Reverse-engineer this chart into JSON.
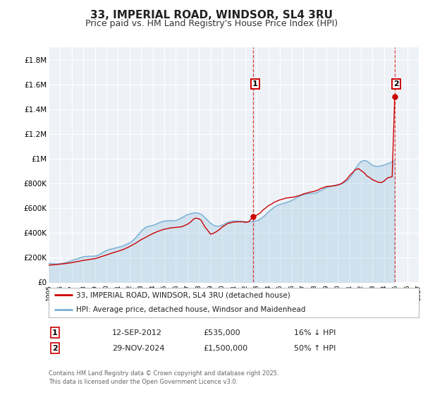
{
  "title": "33, IMPERIAL ROAD, WINDSOR, SL4 3RU",
  "subtitle": "Price paid vs. HM Land Registry's House Price Index (HPI)",
  "title_fontsize": 11,
  "subtitle_fontsize": 9,
  "background_color": "#ffffff",
  "plot_bg_color": "#eef2f7",
  "grid_color": "#ffffff",
  "ylim": [
    0,
    1900000
  ],
  "yticks": [
    0,
    200000,
    400000,
    600000,
    800000,
    1000000,
    1200000,
    1400000,
    1600000,
    1800000
  ],
  "ytick_labels": [
    "£0",
    "£200K",
    "£400K",
    "£600K",
    "£800K",
    "£1M",
    "£1.2M",
    "£1.4M",
    "£1.6M",
    "£1.8M"
  ],
  "xlim_start": 1995.0,
  "xlim_end": 2027.0,
  "xtick_years": [
    1995,
    1996,
    1997,
    1998,
    1999,
    2000,
    2001,
    2002,
    2003,
    2004,
    2005,
    2006,
    2007,
    2008,
    2009,
    2010,
    2011,
    2012,
    2013,
    2014,
    2015,
    2016,
    2017,
    2018,
    2019,
    2020,
    2021,
    2022,
    2023,
    2024,
    2025,
    2026,
    2027
  ],
  "red_line_color": "#cc0000",
  "blue_line_color": "#7ab0d4",
  "dashed_vline_color": "#cc0000",
  "sale1_x": 2012.7,
  "sale1_y": 535000,
  "sale2_x": 2024.92,
  "sale2_y": 1500000,
  "legend_label_red": "33, IMPERIAL ROAD, WINDSOR, SL4 3RU (detached house)",
  "legend_label_blue": "HPI: Average price, detached house, Windsor and Maidenhead",
  "annotation1_label": "1",
  "annotation2_label": "2",
  "table_row1": [
    "1",
    "12-SEP-2012",
    "£535,000",
    "16% ↓ HPI"
  ],
  "table_row2": [
    "2",
    "29-NOV-2024",
    "£1,500,000",
    "50% ↑ HPI"
  ],
  "footer_text": "Contains HM Land Registry data © Crown copyright and database right 2025.\nThis data is licensed under the Open Government Licence v3.0.",
  "hpi_data": {
    "years": [
      1995.04,
      1995.21,
      1995.37,
      1995.54,
      1995.71,
      1995.87,
      1996.04,
      1996.21,
      1996.37,
      1996.54,
      1996.71,
      1996.87,
      1997.04,
      1997.21,
      1997.37,
      1997.54,
      1997.71,
      1997.87,
      1998.04,
      1998.21,
      1998.37,
      1998.54,
      1998.71,
      1998.87,
      1999.04,
      1999.21,
      1999.37,
      1999.54,
      1999.71,
      1999.87,
      2000.04,
      2000.21,
      2000.37,
      2000.54,
      2000.71,
      2000.87,
      2001.04,
      2001.21,
      2001.37,
      2001.54,
      2001.71,
      2001.87,
      2002.04,
      2002.21,
      2002.37,
      2002.54,
      2002.71,
      2002.87,
      2003.04,
      2003.21,
      2003.37,
      2003.54,
      2003.71,
      2003.87,
      2004.04,
      2004.21,
      2004.37,
      2004.54,
      2004.71,
      2004.87,
      2005.04,
      2005.21,
      2005.37,
      2005.54,
      2005.71,
      2005.87,
      2006.04,
      2006.21,
      2006.37,
      2006.54,
      2006.71,
      2006.87,
      2007.04,
      2007.21,
      2007.37,
      2007.54,
      2007.71,
      2007.87,
      2008.04,
      2008.21,
      2008.37,
      2008.54,
      2008.71,
      2008.87,
      2009.04,
      2009.21,
      2009.37,
      2009.54,
      2009.71,
      2009.87,
      2010.04,
      2010.21,
      2010.37,
      2010.54,
      2010.71,
      2010.87,
      2011.04,
      2011.21,
      2011.37,
      2011.54,
      2011.71,
      2011.87,
      2012.04,
      2012.21,
      2012.37,
      2012.54,
      2012.71,
      2012.87,
      2013.04,
      2013.21,
      2013.37,
      2013.54,
      2013.71,
      2013.87,
      2014.04,
      2014.21,
      2014.37,
      2014.54,
      2014.71,
      2014.87,
      2015.04,
      2015.21,
      2015.37,
      2015.54,
      2015.71,
      2015.87,
      2016.04,
      2016.21,
      2016.37,
      2016.54,
      2016.71,
      2016.87,
      2017.04,
      2017.21,
      2017.37,
      2017.54,
      2017.71,
      2017.87,
      2018.04,
      2018.21,
      2018.37,
      2018.54,
      2018.71,
      2018.87,
      2019.04,
      2019.21,
      2019.37,
      2019.54,
      2019.71,
      2019.87,
      2020.04,
      2020.21,
      2020.37,
      2020.54,
      2020.71,
      2020.87,
      2021.04,
      2021.21,
      2021.37,
      2021.54,
      2021.71,
      2021.87,
      2022.04,
      2022.21,
      2022.37,
      2022.54,
      2022.71,
      2022.87,
      2023.04,
      2023.21,
      2023.37,
      2023.54,
      2023.71,
      2023.87,
      2024.04,
      2024.21,
      2024.37,
      2024.54,
      2024.71,
      2024.87
    ],
    "values": [
      155000,
      153000,
      151000,
      150000,
      150000,
      151000,
      152000,
      155000,
      158000,
      162000,
      167000,
      172000,
      178000,
      183000,
      188000,
      194000,
      199000,
      204000,
      208000,
      210000,
      211000,
      212000,
      212000,
      212000,
      214000,
      218000,
      225000,
      234000,
      244000,
      253000,
      260000,
      265000,
      269000,
      273000,
      277000,
      281000,
      285000,
      289000,
      294000,
      300000,
      307000,
      314000,
      322000,
      333000,
      347000,
      363000,
      381000,
      400000,
      418000,
      433000,
      444000,
      452000,
      456000,
      458000,
      462000,
      468000,
      475000,
      482000,
      488000,
      493000,
      496000,
      498000,
      499000,
      499000,
      499000,
      499000,
      502000,
      508000,
      516000,
      525000,
      534000,
      542000,
      549000,
      554000,
      558000,
      561000,
      563000,
      562000,
      557000,
      549000,
      537000,
      522000,
      506000,
      490000,
      476000,
      465000,
      458000,
      455000,
      455000,
      459000,
      465000,
      473000,
      481000,
      488000,
      493000,
      496000,
      497000,
      497000,
      496000,
      495000,
      494000,
      493000,
      491000,
      491000,
      491000,
      492000,
      494000,
      497000,
      502000,
      508000,
      517000,
      529000,
      543000,
      558000,
      573000,
      587000,
      600000,
      611000,
      620000,
      627000,
      632000,
      637000,
      641000,
      646000,
      651000,
      657000,
      664000,
      672000,
      681000,
      690000,
      698000,
      705000,
      710000,
      714000,
      717000,
      718000,
      719000,
      720000,
      723000,
      728000,
      735000,
      743000,
      752000,
      760000,
      767000,
      772000,
      776000,
      780000,
      784000,
      788000,
      791000,
      795000,
      800000,
      807000,
      816000,
      829000,
      846000,
      868000,
      895000,
      922000,
      946000,
      965000,
      978000,
      985000,
      985000,
      979000,
      968000,
      956000,
      946000,
      940000,
      938000,
      939000,
      942000,
      946000,
      951000,
      956000,
      962000,
      968000,
      975000,
      982000
    ]
  },
  "red_data": {
    "years": [
      1995.04,
      1995.5,
      1996.0,
      1996.5,
      1997.0,
      1997.5,
      1998.0,
      1998.5,
      1999.0,
      1999.5,
      2000.0,
      2000.5,
      2001.0,
      2001.5,
      2002.0,
      2002.5,
      2003.0,
      2003.5,
      2004.0,
      2004.5,
      2005.0,
      2005.5,
      2006.0,
      2006.5,
      2007.0,
      2007.3,
      2007.5,
      2007.7,
      2008.0,
      2008.2,
      2008.5,
      2008.8,
      2009.0,
      2009.2,
      2009.5,
      2009.8,
      2010.0,
      2010.3,
      2010.5,
      2010.8,
      2011.0,
      2011.3,
      2011.5,
      2011.8,
      2012.0,
      2012.3,
      2012.7,
      2012.9,
      2013.0,
      2013.3,
      2013.5,
      2013.8,
      2014.0,
      2014.3,
      2014.5,
      2014.8,
      2015.0,
      2015.3,
      2015.5,
      2015.8,
      2016.0,
      2016.3,
      2016.5,
      2016.8,
      2017.0,
      2017.3,
      2017.5,
      2017.8,
      2018.0,
      2018.3,
      2018.5,
      2018.8,
      2019.0,
      2019.3,
      2019.5,
      2019.8,
      2020.0,
      2020.3,
      2020.5,
      2020.8,
      2021.0,
      2021.3,
      2021.5,
      2021.8,
      2022.0,
      2022.3,
      2022.5,
      2022.8,
      2023.0,
      2023.3,
      2023.5,
      2023.8,
      2024.0,
      2024.3,
      2024.7,
      2024.92
    ],
    "values": [
      140000,
      143000,
      148000,
      153000,
      160000,
      169000,
      178000,
      185000,
      192000,
      207000,
      222000,
      238000,
      252000,
      268000,
      290000,
      316000,
      346000,
      370000,
      395000,
      415000,
      430000,
      440000,
      445000,
      450000,
      470000,
      490000,
      510000,
      520000,
      515000,
      500000,
      450000,
      415000,
      390000,
      395000,
      410000,
      430000,
      448000,
      465000,
      478000,
      483000,
      488000,
      490000,
      490000,
      490000,
      485000,
      490000,
      535000,
      540000,
      545000,
      562000,
      583000,
      605000,
      620000,
      635000,
      648000,
      660000,
      668000,
      675000,
      682000,
      685000,
      688000,
      692000,
      698000,
      706000,
      715000,
      722000,
      728000,
      733000,
      738000,
      748000,
      758000,
      768000,
      775000,
      778000,
      780000,
      783000,
      788000,
      798000,
      812000,
      835000,
      862000,
      890000,
      910000,
      920000,
      905000,
      885000,
      862000,
      845000,
      830000,
      818000,
      810000,
      808000,
      820000,
      845000,
      855000,
      1500000
    ]
  }
}
